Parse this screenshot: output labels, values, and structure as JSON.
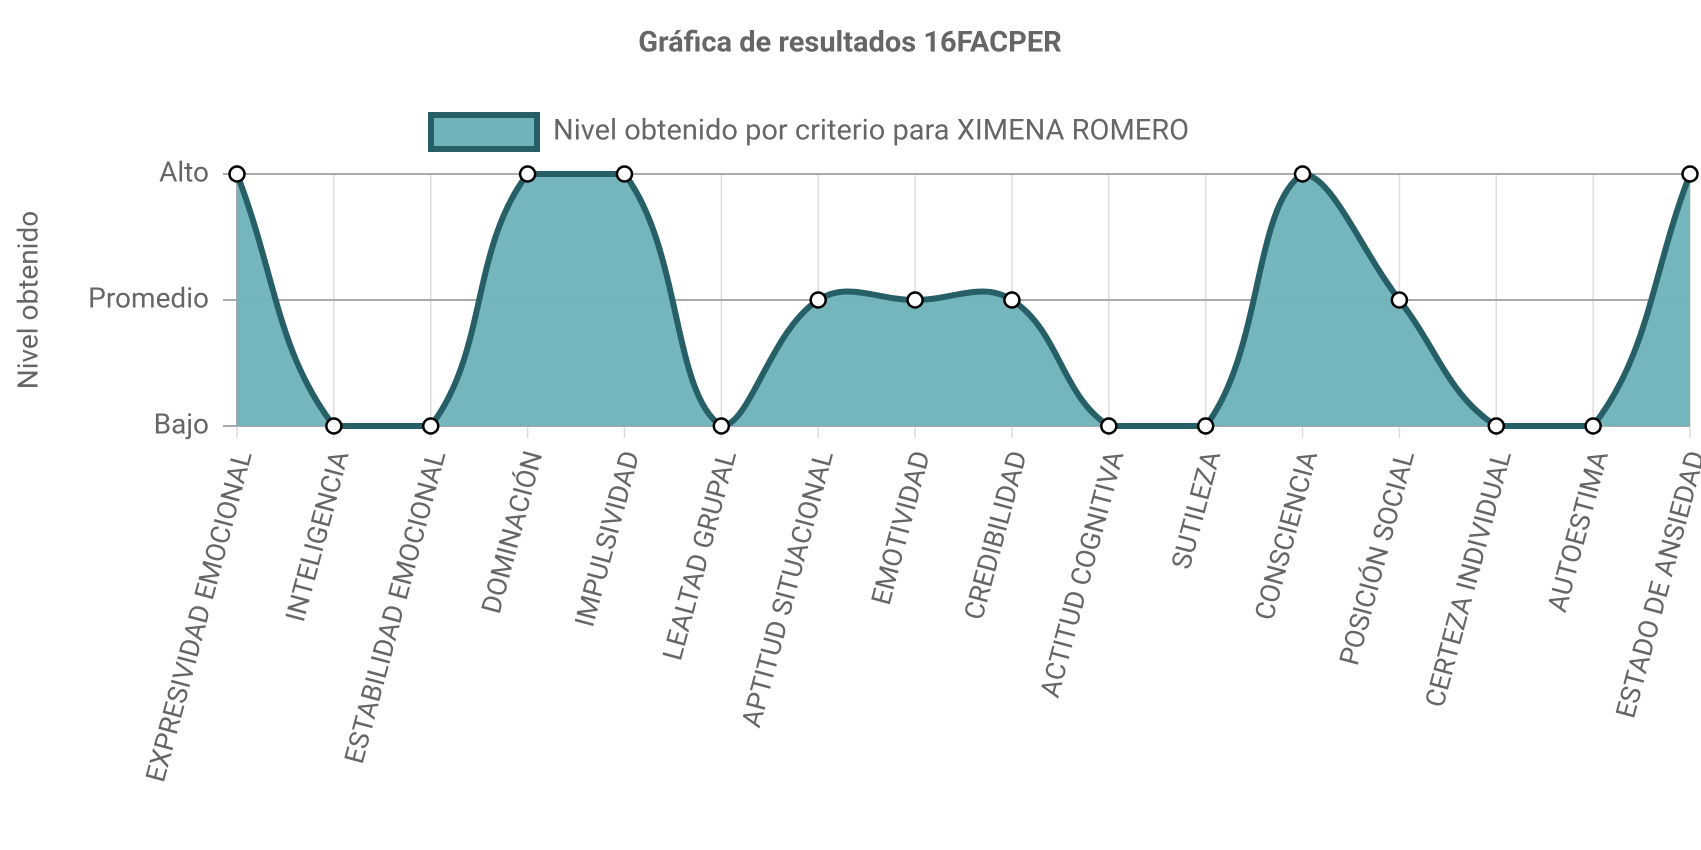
{
  "chart_data": {
    "type": "line",
    "title": "Gráfica de resultados 16FACPER",
    "y_label": "Nivel obtenido",
    "categories": [
      "EXPRESIVIDAD EMOCIONAL",
      "INTELIGENCIA",
      "ESTABILIDAD EMOCIONAL",
      "DOMINACIÓN",
      "IMPULSIVIDAD",
      "LEALTAD GRUPAL",
      "APTITUD SITUACIONAL",
      "EMOTIVIDAD",
      "CREDIBILIDAD",
      "ACTITUD COGNITIVA",
      "SUTILEZA",
      "CONSCIENCIA",
      "POSICIÓN SOCIAL",
      "CERTEZA INDIVIDUAL",
      "AUTOESTIMA",
      "ESTADO DE ANSIEDAD"
    ],
    "series": [
      {
        "name": "Nivel obtenido por criterio para XIMENA ROMERO",
        "color": "#265f66",
        "fill": "#6fb4b9",
        "values": [
          2,
          0,
          0,
          2,
          2,
          0,
          1,
          1,
          1,
          0,
          0,
          2,
          1,
          0,
          0,
          2
        ]
      }
    ],
    "ylim": [
      0,
      2
    ],
    "yticks": [
      {
        "value": 0,
        "label": "Bajo"
      },
      {
        "value": 1,
        "label": "Promedio"
      },
      {
        "value": 2,
        "label": "Alto"
      }
    ],
    "grid": true
  }
}
